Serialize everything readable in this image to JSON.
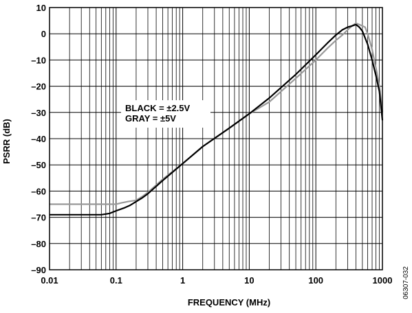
{
  "chart_data": {
    "type": "line",
    "title": "",
    "xlabel": "FREQUENCY (MHz)",
    "ylabel": "PSRR (dB)",
    "x_scale": "log",
    "xlim": [
      0.01,
      1000
    ],
    "ylim": [
      -90,
      10
    ],
    "x_ticks": [
      0.01,
      0.1,
      1,
      10,
      100,
      1000
    ],
    "x_tick_labels": [
      "0.01",
      "0.1",
      "1",
      "10",
      "100",
      "1000"
    ],
    "y_ticks": [
      10,
      0,
      -10,
      -20,
      -30,
      -40,
      -50,
      -60,
      -70,
      -80,
      -90
    ],
    "y_tick_labels": [
      "10",
      "0",
      "–10",
      "–20",
      "–30",
      "–40",
      "–50",
      "–60",
      "–70",
      "–80",
      "–90"
    ],
    "grid": true,
    "legend_lines": [
      "BLACK = ±2.5V",
      "GRAY = ±5V"
    ],
    "figure_id": "06307-032",
    "colors": {
      "black_series": "#000000",
      "gray_series": "#999999",
      "grid": "#000000"
    },
    "series": [
      {
        "color": "black",
        "x": [
          0.01,
          0.03,
          0.06,
          0.08,
          0.1,
          0.13,
          0.16,
          0.2,
          0.25,
          0.3,
          0.5,
          1,
          2,
          5,
          10,
          20,
          50,
          100,
          150,
          200,
          250,
          300,
          350,
          400,
          450,
          500,
          600,
          700,
          800,
          900,
          1000
        ],
        "y": [
          -69,
          -69,
          -69,
          -68.5,
          -67.5,
          -66.5,
          -65.5,
          -64,
          -62.5,
          -61,
          -56,
          -49.5,
          -43,
          -36,
          -30.5,
          -24.5,
          -15.5,
          -8,
          -3.5,
          -0.5,
          1.5,
          2.5,
          3,
          3.5,
          2.5,
          1,
          -4,
          -10,
          -16,
          -22,
          -33
        ]
      },
      {
        "color": "gray",
        "x": [
          0.01,
          0.05,
          0.1,
          0.12,
          0.15,
          0.2,
          0.25,
          0.3,
          0.5,
          1,
          2,
          5,
          10,
          20,
          50,
          100,
          150,
          200,
          250,
          300,
          350,
          400,
          450,
          500,
          550,
          600,
          700,
          800,
          900,
          1000
        ],
        "y": [
          -65,
          -65,
          -65,
          -64.5,
          -64,
          -63.5,
          -62,
          -60.5,
          -55.5,
          -49.5,
          -43,
          -36,
          -30.5,
          -26,
          -17,
          -10,
          -5.5,
          -2.5,
          -0.5,
          1.5,
          3,
          4,
          3.5,
          3,
          2.5,
          0,
          -6,
          -13,
          -20,
          -30
        ]
      }
    ]
  }
}
